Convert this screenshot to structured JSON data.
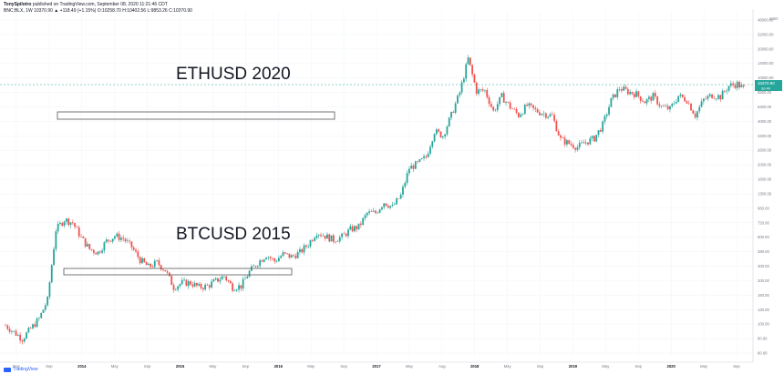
{
  "header": {
    "publisher": "TonySpilotro",
    "published_text": "published on TradingView.com, September 08, 2020 11:21:46 CDT",
    "symbol_line": "BNC:BLX, 1W  10370.90  ▲ +118.49 (+1.15%)  O:10258.70  H:10402.56  L:9853.26  C:10370.90"
  },
  "footer": {
    "brand": "TradingView"
  },
  "annotations": {
    "eth_label": "ETHUSD 2020",
    "btc_label": "BTCUSD 2015"
  },
  "price_axis": {
    "currency": "USD",
    "current_price": "10370.90",
    "current_sub": "3d 4h",
    "ticks": [
      "48000.00",
      "32000.00",
      "20000.00",
      "14000.00",
      "10000.00",
      "6500.00",
      "5300.00",
      "4000.00",
      "3400.00",
      "2600.00",
      "2000.00",
      "1600.00",
      "1300.00",
      "960.00",
      "720.00",
      "500.00",
      "390.00",
      "300.00",
      "200.00",
      "160.00",
      "130.00",
      "100.00",
      "80.00",
      "60.00"
    ]
  },
  "time_axis": {
    "ticks": [
      "May",
      "Sep",
      "2014",
      "May",
      "Sep",
      "2015",
      "May",
      "Sep",
      "2016",
      "May",
      "Sep",
      "2017",
      "May",
      "Aug",
      "2018",
      "May",
      "Sep",
      "2019",
      "May",
      "Sep",
      "2020",
      "May",
      "Sep"
    ]
  },
  "colors": {
    "up": "#26a69a",
    "down": "#ef5350",
    "box": "#555555",
    "accent": "#2962ff"
  },
  "chart_data": {
    "type": "candlestick",
    "symbol": "BNC:BLX",
    "interval": "1W",
    "scale": "log",
    "ylim": [
      60,
      48000
    ],
    "x_range": [
      "2013-05",
      "2020-09"
    ],
    "series": [
      {
        "name": "",
        "points": [
          [
            "2013-05",
            110
          ],
          [
            "2013-07",
            85
          ],
          [
            "2013-09",
            125
          ],
          [
            "2013-10",
            180
          ],
          [
            "2013-11",
            700
          ],
          [
            "2013-12",
            850
          ],
          [
            "2014-01",
            800
          ],
          [
            "2014-02",
            600
          ],
          [
            "2014-03",
            480
          ],
          [
            "2014-04",
            450
          ],
          [
            "2014-05",
            560
          ],
          [
            "2014-06",
            620
          ],
          [
            "2014-07",
            590
          ],
          [
            "2014-08",
            500
          ],
          [
            "2014-09",
            390
          ],
          [
            "2014-10",
            340
          ],
          [
            "2014-11",
            370
          ],
          [
            "2014-12",
            320
          ],
          [
            "2015-01",
            230
          ],
          [
            "2015-02",
            250
          ],
          [
            "2015-03",
            250
          ],
          [
            "2015-04",
            230
          ],
          [
            "2015-05",
            235
          ],
          [
            "2015-06",
            260
          ],
          [
            "2015-07",
            285
          ],
          [
            "2015-08",
            230
          ],
          [
            "2015-09",
            235
          ],
          [
            "2015-10",
            310
          ],
          [
            "2015-11",
            370
          ],
          [
            "2015-12",
            430
          ],
          [
            "2016-01",
            380
          ],
          [
            "2016-02",
            435
          ],
          [
            "2016-03",
            415
          ],
          [
            "2016-04",
            450
          ],
          [
            "2016-05",
            530
          ],
          [
            "2016-06",
            670
          ],
          [
            "2016-07",
            620
          ],
          [
            "2016-08",
            575
          ],
          [
            "2016-09",
            610
          ],
          [
            "2016-10",
            700
          ],
          [
            "2016-11",
            740
          ],
          [
            "2016-12",
            960
          ],
          [
            "2017-01",
            970
          ],
          [
            "2017-02",
            1190
          ],
          [
            "2017-03",
            1080
          ],
          [
            "2017-04",
            1350
          ],
          [
            "2017-05",
            2300
          ],
          [
            "2017-06",
            2500
          ],
          [
            "2017-07",
            2850
          ],
          [
            "2017-08",
            4700
          ],
          [
            "2017-09",
            4300
          ],
          [
            "2017-10",
            6400
          ],
          [
            "2017-11",
            9900
          ],
          [
            "2017-12",
            19000
          ],
          [
            "2018-01",
            10200
          ],
          [
            "2018-02",
            10300
          ],
          [
            "2018-03",
            6900
          ],
          [
            "2018-04",
            9200
          ],
          [
            "2018-05",
            7500
          ],
          [
            "2018-06",
            6400
          ],
          [
            "2018-07",
            7700
          ],
          [
            "2018-08",
            7000
          ],
          [
            "2018-09",
            6600
          ],
          [
            "2018-10",
            6300
          ],
          [
            "2018-11",
            4000
          ],
          [
            "2018-12",
            3700
          ],
          [
            "2019-01",
            3450
          ],
          [
            "2019-02",
            3800
          ],
          [
            "2019-03",
            4100
          ],
          [
            "2019-04",
            5300
          ],
          [
            "2019-05",
            8500
          ],
          [
            "2019-06",
            10800
          ],
          [
            "2019-07",
            10100
          ],
          [
            "2019-08",
            9600
          ],
          [
            "2019-09",
            8300
          ],
          [
            "2019-10",
            9200
          ],
          [
            "2019-11",
            7500
          ],
          [
            "2019-12",
            7200
          ],
          [
            "2020-01",
            9300
          ],
          [
            "2020-02",
            8600
          ],
          [
            "2020-03",
            6400
          ],
          [
            "2020-04",
            8600
          ],
          [
            "2020-05",
            9450
          ],
          [
            "2020-06",
            9150
          ],
          [
            "2020-07",
            11300
          ],
          [
            "2020-08",
            11700
          ],
          [
            "2020-09",
            10370
          ]
        ]
      }
    ]
  }
}
